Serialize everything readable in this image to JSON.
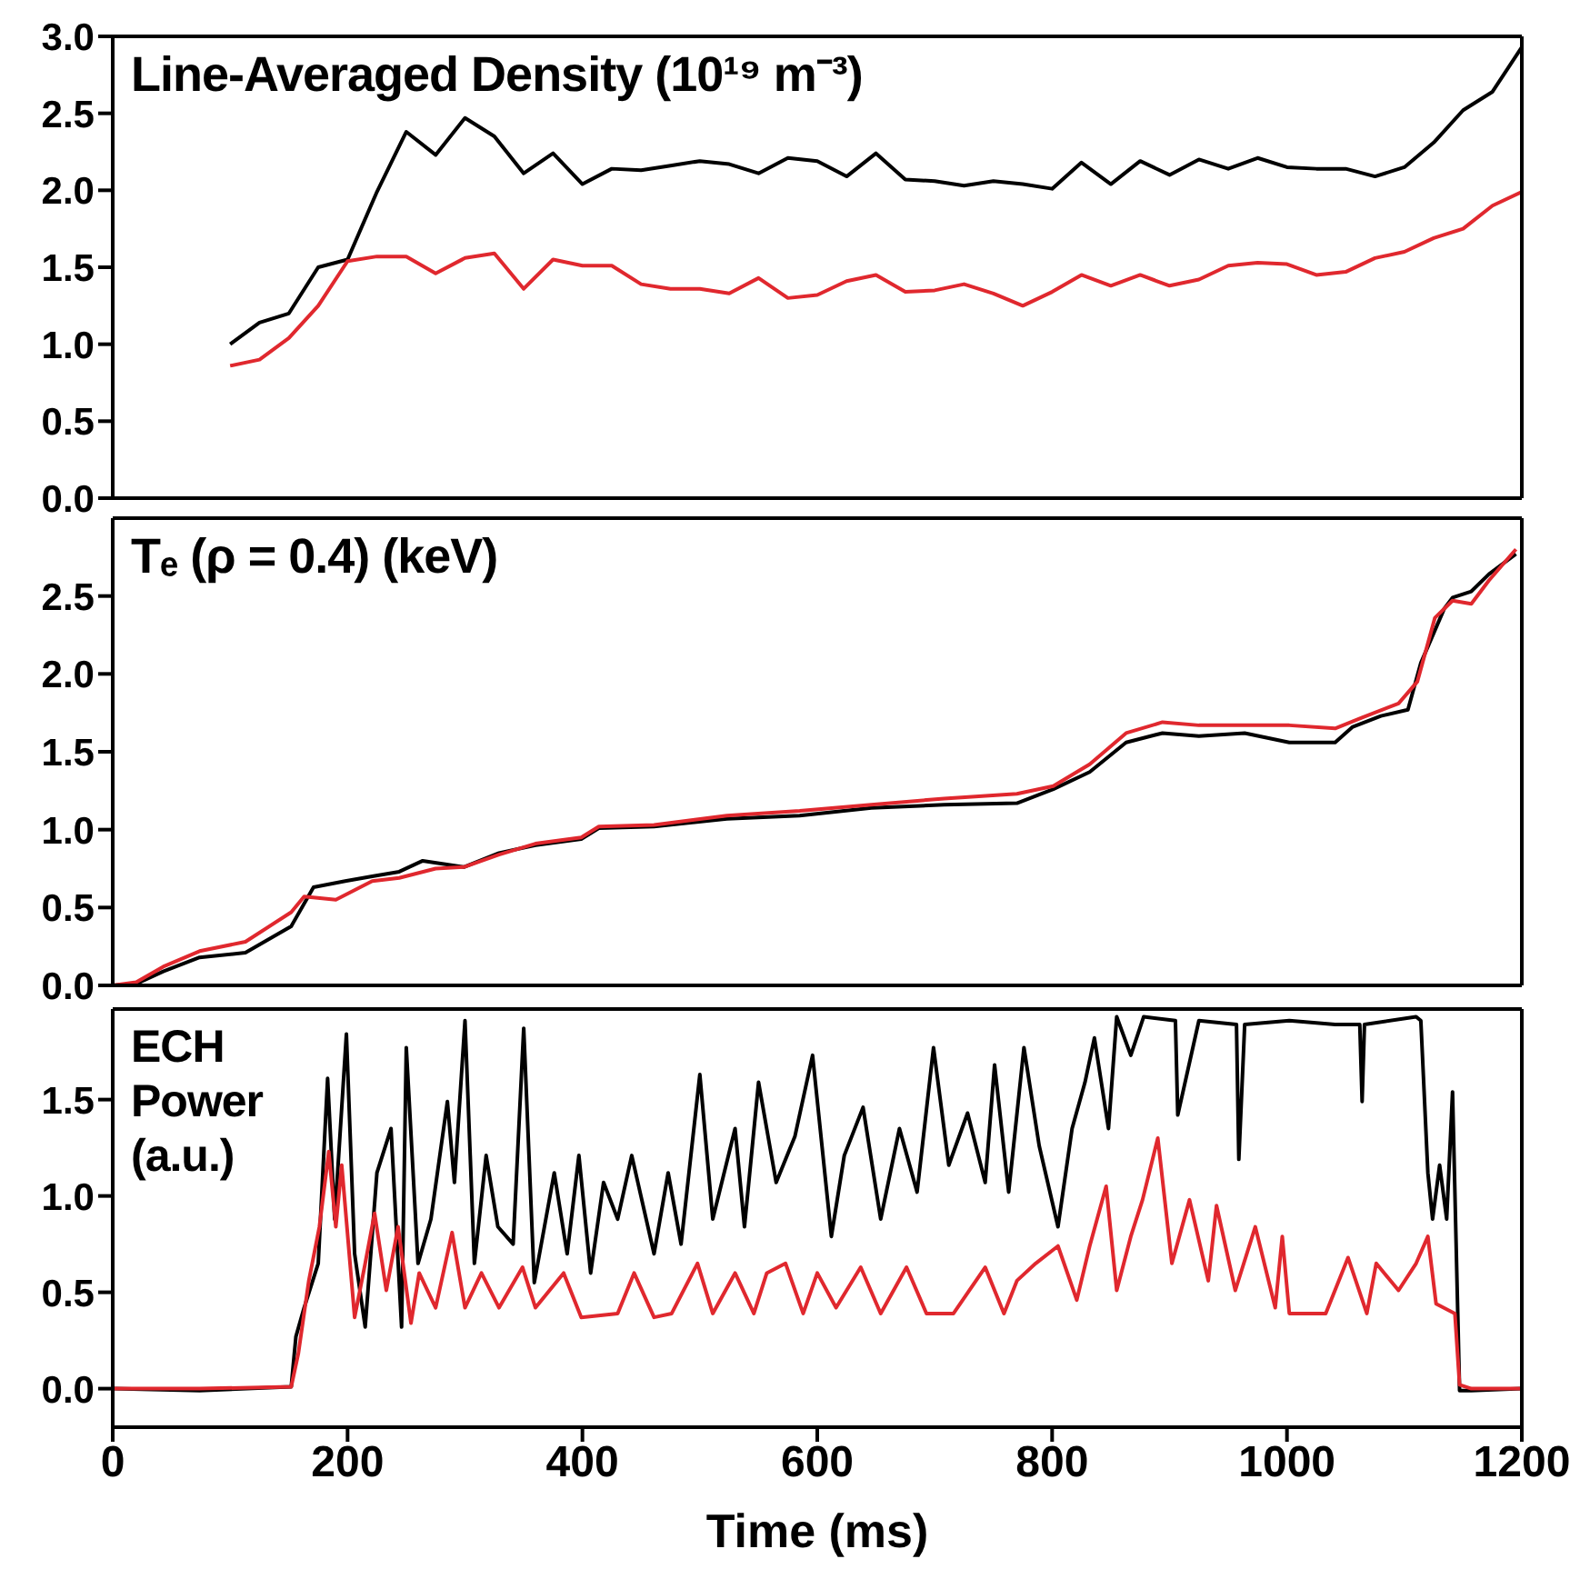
{
  "chart_data": [
    {
      "type": "line",
      "title": "Line-Averaged Density (10¹⁹ m⁻³)",
      "xlim": [
        0,
        1200
      ],
      "xticks": [
        0,
        200,
        400,
        600,
        800,
        1000,
        1200
      ],
      "ylim": [
        0,
        3
      ],
      "yticks": [
        {
          "value": 0,
          "label": "0.0"
        },
        {
          "value": 0.5,
          "label": "0.5"
        },
        {
          "value": 1,
          "label": "1.0"
        },
        {
          "value": 1.5,
          "label": "1.5"
        },
        {
          "value": 2,
          "label": "2.0"
        },
        {
          "value": 2.5,
          "label": "2.5"
        },
        {
          "value": 3,
          "label": "3.0"
        }
      ],
      "tick_labels": "y",
      "series": [
        {
          "color": "#000000",
          "x": [
            100,
            125,
            150,
            175,
            200,
            225,
            250,
            275,
            300,
            325,
            350,
            375,
            400,
            425,
            450,
            475,
            500,
            525,
            550,
            575,
            600,
            625,
            650,
            675,
            700,
            725,
            750,
            775,
            800,
            825,
            850,
            875,
            900,
            925,
            950,
            975,
            1000,
            1025,
            1050,
            1075,
            1100,
            1125,
            1150,
            1175,
            1200
          ],
          "values": [
            1.0,
            1.14,
            1.2,
            1.5,
            1.55,
            1.99,
            2.38,
            2.23,
            2.47,
            2.35,
            2.11,
            2.24,
            2.04,
            2.14,
            2.13,
            2.16,
            2.19,
            2.17,
            2.11,
            2.21,
            2.19,
            2.09,
            2.24,
            2.07,
            2.06,
            2.03,
            2.06,
            2.04,
            2.01,
            2.18,
            2.04,
            2.19,
            2.1,
            2.2,
            2.14,
            2.21,
            2.15,
            2.14,
            2.14,
            2.09,
            2.15,
            2.31,
            2.52,
            2.64,
            2.93
          ]
        },
        {
          "color": "#e0282e",
          "x": [
            100,
            125,
            150,
            175,
            200,
            225,
            250,
            275,
            300,
            325,
            350,
            375,
            400,
            425,
            450,
            475,
            500,
            525,
            550,
            575,
            600,
            625,
            650,
            675,
            700,
            725,
            750,
            775,
            800,
            825,
            850,
            875,
            900,
            925,
            950,
            975,
            1000,
            1025,
            1050,
            1075,
            1100,
            1125,
            1150,
            1175,
            1200
          ],
          "values": [
            0.86,
            0.9,
            1.04,
            1.25,
            1.54,
            1.57,
            1.57,
            1.46,
            1.56,
            1.59,
            1.36,
            1.55,
            1.51,
            1.51,
            1.39,
            1.36,
            1.36,
            1.33,
            1.43,
            1.3,
            1.32,
            1.41,
            1.45,
            1.34,
            1.35,
            1.39,
            1.33,
            1.25,
            1.34,
            1.45,
            1.38,
            1.45,
            1.38,
            1.42,
            1.51,
            1.53,
            1.52,
            1.45,
            1.47,
            1.56,
            1.6,
            1.69,
            1.75,
            1.9,
            1.99
          ]
        }
      ]
    },
    {
      "type": "line",
      "title": "Tₑ (ρ = 0.4) (keV)",
      "xlim": [
        0,
        1200
      ],
      "xticks": [
        0,
        200,
        400,
        600,
        800,
        1000,
        1200
      ],
      "ylim": [
        0,
        3
      ],
      "yticks": [
        {
          "value": 0,
          "label": "0.0"
        },
        {
          "value": 0.5,
          "label": "0.5"
        },
        {
          "value": 1,
          "label": "1.0"
        },
        {
          "value": 1.5,
          "label": "1.5"
        },
        {
          "value": 2,
          "label": "2.0"
        },
        {
          "value": 2.5,
          "label": "2.5"
        }
      ],
      "tick_labels": "y",
      "series": [
        {
          "color": "#000000",
          "x": [
            0,
            20,
            43,
            74,
            113,
            152,
            171,
            198,
            221,
            244,
            264,
            299,
            329,
            360,
            399,
            414,
            461,
            523,
            585,
            646,
            708,
            770,
            801,
            832,
            863,
            894,
            925,
            964,
            1002,
            1041,
            1056,
            1080,
            1103,
            1114,
            1134,
            1141,
            1157,
            1172,
            1195
          ],
          "values": [
            0,
            0.01,
            0.09,
            0.18,
            0.21,
            0.38,
            0.63,
            0.67,
            0.7,
            0.73,
            0.8,
            0.76,
            0.85,
            0.9,
            0.94,
            1.01,
            1.02,
            1.07,
            1.09,
            1.14,
            1.16,
            1.17,
            1.26,
            1.37,
            1.56,
            1.62,
            1.6,
            1.62,
            1.56,
            1.56,
            1.66,
            1.73,
            1.77,
            2.07,
            2.42,
            2.49,
            2.53,
            2.64,
            2.77
          ]
        },
        {
          "color": "#e0282e",
          "x": [
            0,
            20,
            43,
            74,
            113,
            152,
            163,
            190,
            221,
            244,
            275,
            299,
            329,
            360,
            399,
            414,
            461,
            523,
            585,
            646,
            708,
            770,
            801,
            832,
            863,
            894,
            925,
            964,
            1002,
            1041,
            1064,
            1095,
            1111,
            1126,
            1141,
            1157,
            1172,
            1195
          ],
          "values": [
            0,
            0.02,
            0.12,
            0.22,
            0.28,
            0.47,
            0.57,
            0.55,
            0.67,
            0.69,
            0.75,
            0.76,
            0.84,
            0.91,
            0.95,
            1.02,
            1.03,
            1.09,
            1.12,
            1.16,
            1.2,
            1.23,
            1.28,
            1.42,
            1.62,
            1.69,
            1.67,
            1.67,
            1.67,
            1.65,
            1.72,
            1.81,
            1.95,
            2.36,
            2.47,
            2.45,
            2.6,
            2.8
          ]
        }
      ]
    },
    {
      "type": "line",
      "title": "ECH Power (a.u.)",
      "xlabel": "Time (ms)",
      "xlim": [
        0,
        1200
      ],
      "xticks": [
        0,
        200,
        400,
        600,
        800,
        1000,
        1200
      ],
      "ylim": [
        -0.2,
        1.97
      ],
      "yticks": [
        {
          "value": 0,
          "label": "0.0"
        },
        {
          "value": 0.5,
          "label": "0.5"
        },
        {
          "value": 1,
          "label": "1.0"
        },
        {
          "value": 1.5,
          "label": "1.5"
        }
      ],
      "series": [
        {
          "color": "#000000",
          "x": [
            0,
            74,
            152,
            156,
            163,
            175,
            183,
            189,
            199,
            206,
            215,
            225,
            237,
            246,
            250,
            260,
            271,
            285,
            291,
            300,
            308,
            318,
            328,
            341,
            350,
            359,
            376,
            387,
            397,
            407,
            418,
            430,
            442,
            461,
            473,
            484,
            500,
            511,
            530,
            538,
            550,
            565,
            581,
            596,
            612,
            623,
            639,
            654,
            670,
            685,
            699,
            712,
            728,
            743,
            751,
            763,
            776,
            789,
            805,
            817,
            828,
            836,
            848,
            855,
            867,
            878,
            905,
            907,
            925,
            957,
            959,
            964,
            1002,
            1041,
            1062,
            1064,
            1066,
            1110,
            1114,
            1120,
            1124,
            1130,
            1136,
            1141,
            1147,
            1157,
            1200
          ],
          "values": [
            0,
            -0.01,
            0.01,
            0.27,
            0.42,
            0.65,
            1.61,
            0.88,
            1.84,
            0.7,
            0.32,
            1.12,
            1.35,
            0.32,
            1.77,
            0.65,
            0.88,
            1.49,
            1.07,
            1.91,
            0.65,
            1.21,
            0.84,
            0.75,
            1.87,
            0.55,
            1.12,
            0.7,
            1.21,
            0.6,
            1.07,
            0.88,
            1.21,
            0.7,
            1.12,
            0.75,
            1.63,
            0.88,
            1.35,
            0.84,
            1.59,
            1.07,
            1.31,
            1.73,
            0.79,
            1.21,
            1.46,
            0.88,
            1.35,
            1.02,
            1.77,
            1.16,
            1.43,
            1.07,
            1.68,
            1.02,
            1.77,
            1.26,
            0.84,
            1.35,
            1.59,
            1.82,
            1.35,
            1.93,
            1.73,
            1.93,
            1.91,
            1.42,
            1.91,
            1.89,
            1.19,
            1.89,
            1.91,
            1.89,
            1.89,
            1.49,
            1.89,
            1.93,
            1.91,
            1.12,
            0.88,
            1.16,
            0.88,
            1.54,
            -0.01,
            -0.01,
            0
          ]
        },
        {
          "color": "#e0282e",
          "x": [
            0,
            74,
            152,
            158,
            167,
            176,
            184,
            190,
            195,
            206,
            215,
            223,
            233,
            243,
            254,
            261,
            275,
            289,
            300,
            314,
            329,
            349,
            360,
            384,
            399,
            430,
            444,
            461,
            476,
            498,
            511,
            530,
            546,
            557,
            573,
            588,
            600,
            616,
            637,
            654,
            676,
            693,
            716,
            743,
            759,
            770,
            786,
            805,
            821,
            832,
            846,
            855,
            867,
            877,
            890,
            902,
            917,
            933,
            940,
            956,
            973,
            990,
            996,
            1002,
            1033,
            1052,
            1068,
            1076,
            1095,
            1110,
            1120,
            1127,
            1143,
            1147,
            1157,
            1200
          ],
          "values": [
            0,
            0,
            0.01,
            0.18,
            0.56,
            0.84,
            1.23,
            0.84,
            1.16,
            0.37,
            0.65,
            0.91,
            0.51,
            0.84,
            0.34,
            0.6,
            0.42,
            0.81,
            0.42,
            0.6,
            0.42,
            0.63,
            0.42,
            0.6,
            0.37,
            0.39,
            0.6,
            0.37,
            0.39,
            0.65,
            0.39,
            0.6,
            0.39,
            0.6,
            0.65,
            0.39,
            0.6,
            0.42,
            0.63,
            0.39,
            0.63,
            0.39,
            0.39,
            0.63,
            0.39,
            0.56,
            0.65,
            0.74,
            0.46,
            0.74,
            1.05,
            0.51,
            0.79,
            0.98,
            1.3,
            0.65,
            0.98,
            0.56,
            0.95,
            0.51,
            0.84,
            0.42,
            0.79,
            0.39,
            0.39,
            0.68,
            0.39,
            0.65,
            0.51,
            0.65,
            0.79,
            0.44,
            0.39,
            0.02,
            0,
            0
          ]
        }
      ]
    }
  ]
}
